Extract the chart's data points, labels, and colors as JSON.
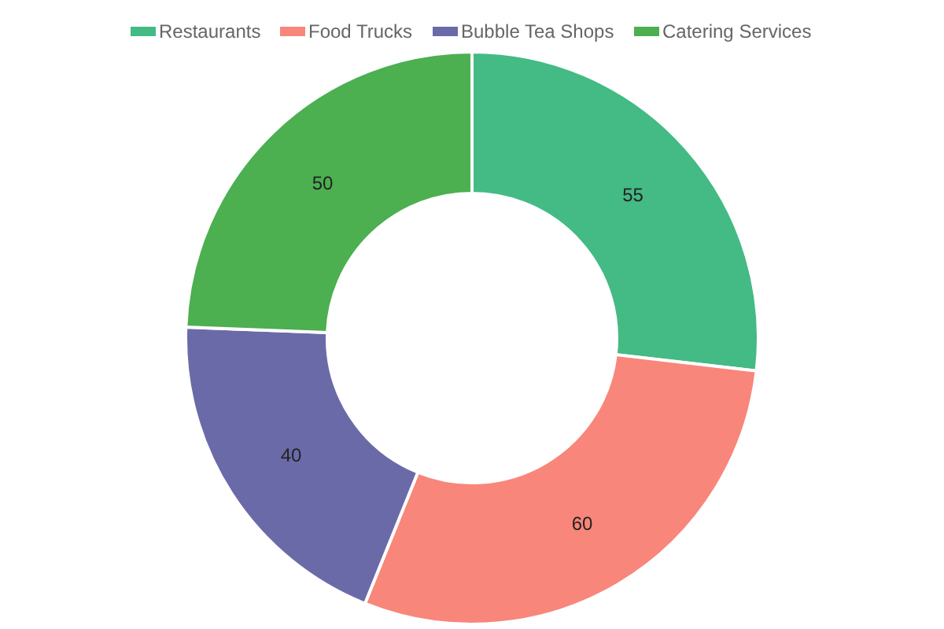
{
  "chart_data": {
    "type": "donut",
    "categories": [
      "Restaurants",
      "Food Trucks",
      "Bubble Tea Shops",
      "Catering Services"
    ],
    "values": [
      55,
      60,
      40,
      50
    ],
    "colors": [
      "#44ba85",
      "#f8867a",
      "#6b6aa8",
      "#4caf50"
    ],
    "data_labels": true,
    "legend": "top"
  }
}
